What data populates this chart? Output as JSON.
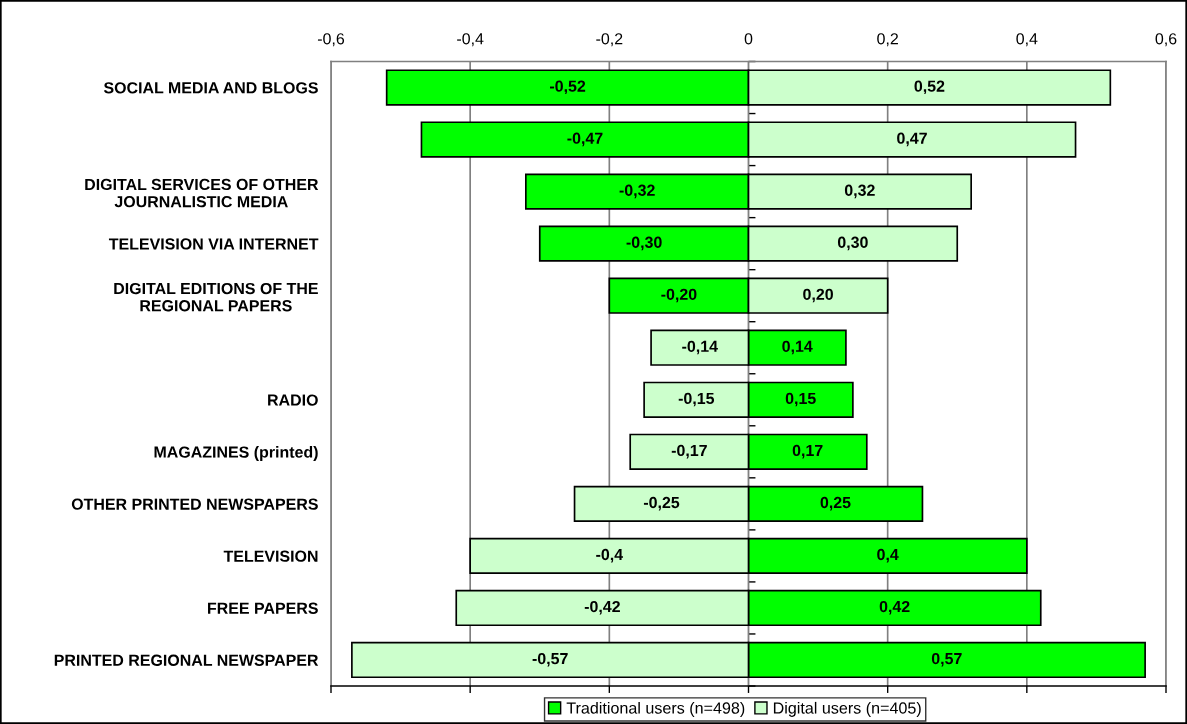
{
  "chart_data": {
    "type": "bar",
    "orientation": "horizontal",
    "stacked": true,
    "categories": [
      "SOCIAL MEDIA AND BLOGS",
      null,
      "DIGITAL SERVICES OF OTHER\nJOURNALISTIC MEDIA",
      "TELEVISION VIA INTERNET",
      "DIGITAL EDITIONS OF THE\nREGIONAL PAPERS",
      null,
      "RADIO",
      "MAGAZINES (printed)",
      "OTHER PRINTED NEWSPAPERS",
      "TELEVISION",
      "FREE PAPERS",
      "PRINTED REGIONAL NEWSPAPER"
    ],
    "series": [
      {
        "name": "Traditional users (n=498)",
        "color": "#00ff00",
        "values": [
          -0.52,
          -0.47,
          -0.32,
          -0.3,
          -0.2,
          0.14,
          0.15,
          0.17,
          0.25,
          0.4,
          0.42,
          0.57
        ],
        "value_labels": [
          "-0,52",
          "-0,47",
          "-0,32",
          "-0,30",
          "-0,20",
          "0,14",
          "0,15",
          "0,17",
          "0,25",
          "0,4",
          "0,42",
          "0,57"
        ]
      },
      {
        "name": "Digital users (n=405)",
        "color": "#ccffcc",
        "values": [
          0.52,
          0.47,
          0.32,
          0.3,
          0.2,
          -0.14,
          -0.15,
          -0.17,
          -0.25,
          -0.4,
          -0.42,
          -0.57
        ],
        "value_labels": [
          "0,52",
          "0,47",
          "0,32",
          "0,30",
          "0,20",
          "-0,14",
          "-0,15",
          "-0,17",
          "-0,25",
          "-0,4",
          "-0,42",
          "-0,57"
        ]
      }
    ],
    "xlim": [
      -0.6,
      0.6
    ],
    "xticks": [
      {
        "value": -0.6,
        "label": "-0,6"
      },
      {
        "value": -0.4,
        "label": "-0,4"
      },
      {
        "value": -0.2,
        "label": "-0,2"
      },
      0,
      {
        "value": 0.2,
        "label": "0,2"
      },
      {
        "value": 0.4,
        "label": "0,4"
      },
      {
        "value": 0.6,
        "label": "0,6"
      }
    ],
    "grid": "x",
    "legend": "bottom"
  }
}
